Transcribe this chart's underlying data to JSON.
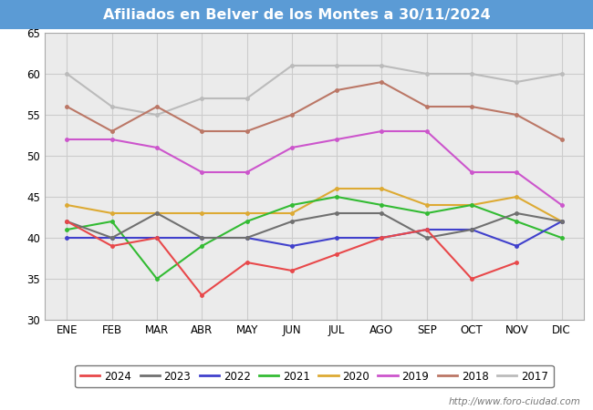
{
  "title": "Afiliados en Belver de los Montes a 30/11/2024",
  "title_bg_color": "#5b9bd5",
  "title_text_color": "white",
  "months": [
    "ENE",
    "FEB",
    "MAR",
    "ABR",
    "MAY",
    "JUN",
    "JUL",
    "AGO",
    "SEP",
    "OCT",
    "NOV",
    "DIC"
  ],
  "ylim": [
    30,
    65
  ],
  "yticks": [
    30,
    35,
    40,
    45,
    50,
    55,
    60,
    65
  ],
  "series": {
    "2024": {
      "color": "#e8484a",
      "values": [
        42,
        39,
        40,
        33,
        37,
        36,
        38,
        40,
        41,
        35,
        37,
        null
      ]
    },
    "2023": {
      "color": "#707070",
      "values": [
        42,
        40,
        43,
        40,
        40,
        42,
        43,
        43,
        40,
        41,
        43,
        42
      ]
    },
    "2022": {
      "color": "#4040cc",
      "values": [
        40,
        40,
        40,
        40,
        40,
        39,
        40,
        40,
        41,
        41,
        39,
        42
      ]
    },
    "2021": {
      "color": "#33bb33",
      "values": [
        41,
        42,
        35,
        39,
        42,
        44,
        45,
        44,
        43,
        44,
        42,
        40
      ]
    },
    "2020": {
      "color": "#ddaa33",
      "values": [
        44,
        43,
        43,
        43,
        43,
        43,
        46,
        46,
        44,
        44,
        45,
        42
      ]
    },
    "2019": {
      "color": "#cc55cc",
      "values": [
        52,
        52,
        51,
        48,
        48,
        51,
        52,
        53,
        53,
        48,
        48,
        44
      ]
    },
    "2018": {
      "color": "#bb7766",
      "values": [
        56,
        53,
        56,
        53,
        53,
        55,
        58,
        59,
        56,
        56,
        55,
        52
      ]
    },
    "2017": {
      "color": "#bbbbbb",
      "values": [
        60,
        56,
        55,
        57,
        57,
        61,
        61,
        61,
        60,
        60,
        59,
        60
      ]
    }
  },
  "watermark": "http://www.foro-ciudad.com",
  "grid_color": "#cccccc",
  "plot_bg_color": "#ebebeb"
}
